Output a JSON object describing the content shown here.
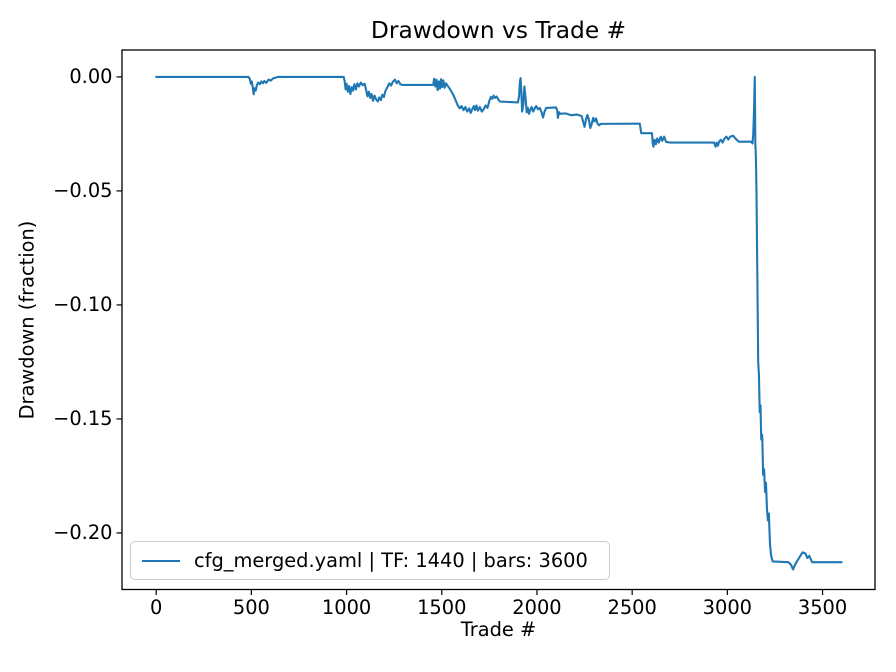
{
  "window": {
    "background": "#ffffff"
  },
  "colors": {
    "series_line": "#1f77b4",
    "axis": "#000000",
    "text": "#000000",
    "legend_border": "#cccccc",
    "legend_background": "rgba(255,255,255,0.8)"
  },
  "legend": {
    "label": "cfg_merged.yaml | TF: 1440 | bars: 3600"
  },
  "chart_data": {
    "type": "line",
    "title": "Drawdown vs Trade #",
    "xlabel": "Trade #",
    "ylabel": "Drawdown (fraction)",
    "grid": false,
    "legend_position": "lower left",
    "xlim": [
      -179.6,
      3775.5
    ],
    "ylim": [
      -0.2248,
      0.0118
    ],
    "x_ticks": [
      0,
      500,
      1000,
      1500,
      2000,
      2500,
      3000,
      3500
    ],
    "x_tick_labels": [
      "0",
      "500",
      "1000",
      "1500",
      "2000",
      "2500",
      "3000",
      "3500"
    ],
    "y_ticks": [
      0.0,
      -0.05,
      -0.1,
      -0.15,
      -0.2
    ],
    "y_tick_labels": [
      "0.00",
      "−0.05",
      "−0.10",
      "−0.15",
      "−0.20"
    ],
    "series": [
      {
        "name": "cfg_merged.yaml | TF: 1440 | bars: 3600",
        "color": "#1f77b4",
        "points": [
          [
            0,
            0
          ],
          [
            485,
            0
          ],
          [
            492,
            -0.001
          ],
          [
            497,
            -0.003
          ],
          [
            502,
            -0.002
          ],
          [
            507,
            -0.0045
          ],
          [
            512,
            -0.0076
          ],
          [
            517,
            -0.005
          ],
          [
            523,
            -0.006
          ],
          [
            529,
            -0.0035
          ],
          [
            536,
            -0.0025
          ],
          [
            544,
            -0.0032
          ],
          [
            552,
            -0.002
          ],
          [
            560,
            -0.0028
          ],
          [
            568,
            -0.0018
          ],
          [
            578,
            -0.0026
          ],
          [
            590,
            -0.0012
          ],
          [
            602,
            -0.0016
          ],
          [
            615,
            -0.0006
          ],
          [
            628,
            -0.0003
          ],
          [
            640,
            0
          ],
          [
            985,
            0
          ],
          [
            990,
            -0.002
          ],
          [
            995,
            -0.0055
          ],
          [
            1000,
            -0.003
          ],
          [
            1007,
            -0.0065
          ],
          [
            1013,
            -0.004
          ],
          [
            1020,
            -0.0075
          ],
          [
            1027,
            -0.0045
          ],
          [
            1034,
            -0.006
          ],
          [
            1041,
            -0.0032
          ],
          [
            1049,
            -0.0055
          ],
          [
            1057,
            -0.0028
          ],
          [
            1065,
            -0.0042
          ],
          [
            1075,
            -0.0025
          ],
          [
            1085,
            -0.0036
          ],
          [
            1095,
            -0.003
          ],
          [
            1103,
            -0.006
          ],
          [
            1110,
            -0.0085
          ],
          [
            1117,
            -0.0065
          ],
          [
            1124,
            -0.0092
          ],
          [
            1131,
            -0.0075
          ],
          [
            1139,
            -0.0105
          ],
          [
            1147,
            -0.0082
          ],
          [
            1155,
            -0.0098
          ],
          [
            1164,
            -0.0108
          ],
          [
            1172,
            -0.009
          ],
          [
            1180,
            -0.0102
          ],
          [
            1188,
            -0.0078
          ],
          [
            1196,
            -0.0088
          ],
          [
            1204,
            -0.0062
          ],
          [
            1214,
            -0.0046
          ],
          [
            1224,
            -0.0028
          ],
          [
            1234,
            -0.0038
          ],
          [
            1244,
            -0.002
          ],
          [
            1254,
            -0.0012
          ],
          [
            1263,
            -0.0028
          ],
          [
            1272,
            -0.0018
          ],
          [
            1282,
            -0.0032
          ],
          [
            1292,
            -0.0035
          ],
          [
            1455,
            -0.0035
          ],
          [
            1460,
            -0.0008
          ],
          [
            1466,
            -0.0042
          ],
          [
            1472,
            -0.0012
          ],
          [
            1478,
            -0.0058
          ],
          [
            1484,
            -0.002
          ],
          [
            1490,
            -0.0052
          ],
          [
            1496,
            -0.001
          ],
          [
            1502,
            -0.0045
          ],
          [
            1508,
            -0.0015
          ],
          [
            1515,
            -0.0048
          ],
          [
            1522,
            -0.0028
          ],
          [
            1530,
            -0.0038
          ],
          [
            1542,
            -0.0052
          ],
          [
            1553,
            -0.0068
          ],
          [
            1564,
            -0.0085
          ],
          [
            1574,
            -0.0105
          ],
          [
            1584,
            -0.0125
          ],
          [
            1594,
            -0.0138
          ],
          [
            1604,
            -0.0128
          ],
          [
            1614,
            -0.0146
          ],
          [
            1624,
            -0.0132
          ],
          [
            1634,
            -0.0152
          ],
          [
            1644,
            -0.0138
          ],
          [
            1652,
            -0.0158
          ],
          [
            1660,
            -0.0142
          ],
          [
            1668,
            -0.0128
          ],
          [
            1675,
            -0.0146
          ],
          [
            1682,
            -0.0125
          ],
          [
            1690,
            -0.0148
          ],
          [
            1700,
            -0.0132
          ],
          [
            1710,
            -0.0152
          ],
          [
            1720,
            -0.0142
          ],
          [
            1730,
            -0.0125
          ],
          [
            1740,
            -0.0136
          ],
          [
            1750,
            -0.0105
          ],
          [
            1758,
            -0.0088
          ],
          [
            1765,
            -0.0096
          ],
          [
            1772,
            -0.0082
          ],
          [
            1780,
            -0.0092
          ],
          [
            1788,
            -0.0086
          ],
          [
            1796,
            -0.0098
          ],
          [
            1805,
            -0.0108
          ],
          [
            1900,
            -0.0112
          ],
          [
            1906,
            -0.0085
          ],
          [
            1910,
            -0.0025
          ],
          [
            1914,
            -0.0005
          ],
          [
            1918,
            -0.0065
          ],
          [
            1922,
            -0.0152
          ],
          [
            1928,
            -0.0122
          ],
          [
            1934,
            -0.0042
          ],
          [
            1940,
            -0.0092
          ],
          [
            1946,
            -0.0155
          ],
          [
            1952,
            -0.0135
          ],
          [
            1958,
            -0.0162
          ],
          [
            1965,
            -0.0145
          ],
          [
            1972,
            -0.0132
          ],
          [
            1980,
            -0.0152
          ],
          [
            1988,
            -0.0138
          ],
          [
            1996,
            -0.0128
          ],
          [
            2005,
            -0.0142
          ],
          [
            2015,
            -0.0136
          ],
          [
            2025,
            -0.0158
          ],
          [
            2032,
            -0.0178
          ],
          [
            2040,
            -0.0152
          ],
          [
            2048,
            -0.0136
          ],
          [
            2100,
            -0.0134
          ],
          [
            2106,
            -0.0146
          ],
          [
            2110,
            -0.018
          ],
          [
            2116,
            -0.0155
          ],
          [
            2122,
            -0.0162
          ],
          [
            2150,
            -0.016
          ],
          [
            2180,
            -0.0168
          ],
          [
            2210,
            -0.0165
          ],
          [
            2235,
            -0.0172
          ],
          [
            2242,
            -0.0195
          ],
          [
            2250,
            -0.0219
          ],
          [
            2258,
            -0.0185
          ],
          [
            2265,
            -0.0167
          ],
          [
            2272,
            -0.0185
          ],
          [
            2280,
            -0.0224
          ],
          [
            2288,
            -0.0205
          ],
          [
            2295,
            -0.018
          ],
          [
            2302,
            -0.0195
          ],
          [
            2310,
            -0.0182
          ],
          [
            2318,
            -0.0205
          ],
          [
            2326,
            -0.0212
          ],
          [
            2335,
            -0.0206
          ],
          [
            2540,
            -0.0205
          ],
          [
            2548,
            -0.0247
          ],
          [
            2604,
            -0.0247
          ],
          [
            2608,
            -0.029
          ],
          [
            2612,
            -0.0306
          ],
          [
            2618,
            -0.0276
          ],
          [
            2625,
            -0.0295
          ],
          [
            2632,
            -0.027
          ],
          [
            2640,
            -0.0288
          ],
          [
            2650,
            -0.0262
          ],
          [
            2658,
            -0.028
          ],
          [
            2668,
            -0.0262
          ],
          [
            2678,
            -0.0285
          ],
          [
            2700,
            -0.0288
          ],
          [
            2930,
            -0.0288
          ],
          [
            2938,
            -0.0306
          ],
          [
            2944,
            -0.0288
          ],
          [
            2950,
            -0.0302
          ],
          [
            2958,
            -0.0282
          ],
          [
            2966,
            -0.0276
          ],
          [
            2975,
            -0.0288
          ],
          [
            2985,
            -0.027
          ],
          [
            2995,
            -0.0262
          ],
          [
            3005,
            -0.0275
          ],
          [
            3015,
            -0.0262
          ],
          [
            3030,
            -0.0258
          ],
          [
            3045,
            -0.0272
          ],
          [
            3060,
            -0.0284
          ],
          [
            3125,
            -0.0284
          ],
          [
            3132,
            -0.0292
          ],
          [
            3136,
            -0.025
          ],
          [
            3140,
            -0.015
          ],
          [
            3144,
            0.0
          ],
          [
            3147,
            -0.029
          ],
          [
            3150,
            -0.0355
          ],
          [
            3153,
            -0.05
          ],
          [
            3156,
            -0.075
          ],
          [
            3159,
            -0.1
          ],
          [
            3162,
            -0.125
          ],
          [
            3166,
            -0.131
          ],
          [
            3170,
            -0.147
          ],
          [
            3174,
            -0.144
          ],
          [
            3178,
            -0.159
          ],
          [
            3183,
            -0.157
          ],
          [
            3188,
            -0.1745
          ],
          [
            3193,
            -0.172
          ],
          [
            3198,
            -0.182
          ],
          [
            3203,
            -0.178
          ],
          [
            3208,
            -0.1895
          ],
          [
            3213,
            -0.1945
          ],
          [
            3218,
            -0.1915
          ],
          [
            3224,
            -0.205
          ],
          [
            3230,
            -0.21
          ],
          [
            3238,
            -0.2125
          ],
          [
            3320,
            -0.2128
          ],
          [
            3335,
            -0.214
          ],
          [
            3345,
            -0.216
          ],
          [
            3355,
            -0.214
          ],
          [
            3365,
            -0.2125
          ],
          [
            3380,
            -0.2105
          ],
          [
            3395,
            -0.2085
          ],
          [
            3410,
            -0.209
          ],
          [
            3420,
            -0.211
          ],
          [
            3430,
            -0.21
          ],
          [
            3445,
            -0.2128
          ],
          [
            3600,
            -0.2128
          ]
        ]
      }
    ]
  }
}
